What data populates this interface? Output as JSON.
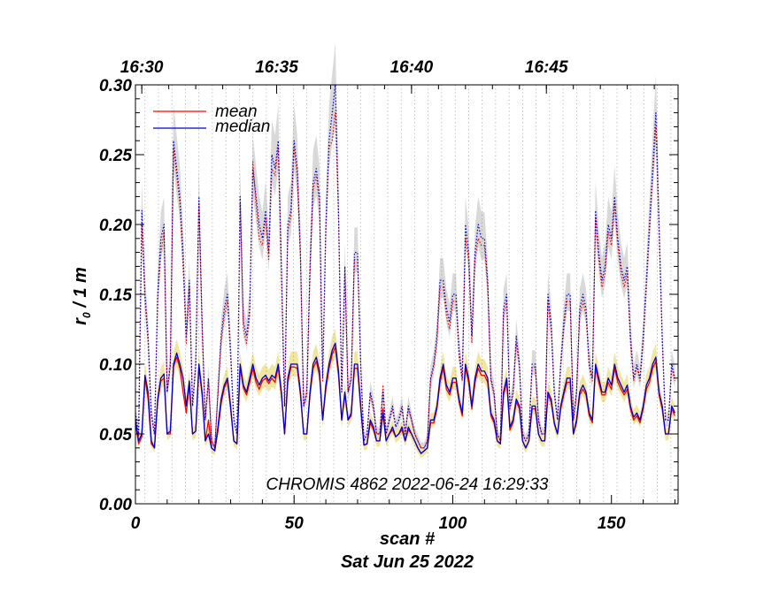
{
  "chart_data": {
    "type": "line",
    "xlabel": "scan #",
    "date_label": "Sat Jun 25 2022",
    "ylabel_main": "r",
    "ylabel_sub": "0",
    "ylabel_rest": " / 1 m",
    "annotation": "CHROMIS 4862 2022-06-24 16:29:33",
    "xlim": [
      0,
      171
    ],
    "ylim": [
      0,
      0.3
    ],
    "x_ticks": [
      0,
      50,
      100,
      150
    ],
    "x_tick_labels": [
      "0",
      "50",
      "100",
      "150"
    ],
    "y_ticks": [
      0,
      0.05,
      0.1,
      0.15,
      0.2,
      0.25,
      0.3
    ],
    "y_tick_labels": [
      "0.00",
      "0.05",
      "0.10",
      "0.15",
      "0.20",
      "0.25",
      "0.30"
    ],
    "time_ticks": [
      {
        "scan": 2,
        "label": "16:30"
      },
      {
        "scan": 44.5,
        "label": "16:35"
      },
      {
        "scan": 87,
        "label": "16:40"
      },
      {
        "scan": 129.5,
        "label": "16:45"
      }
    ],
    "legend_position": "top-left",
    "series": [
      {
        "name": "mean",
        "color": "#ff0000"
      },
      {
        "name": "median",
        "color": "#0000cc"
      }
    ],
    "colors": {
      "low_band": "#f0e6a0",
      "high_band": "#d9d9d9",
      "grid": "#888888"
    },
    "x": [
      0,
      1,
      2,
      3,
      4,
      5,
      6,
      7,
      8,
      9,
      10,
      11,
      12,
      13,
      14,
      15,
      16,
      17,
      18,
      19,
      20,
      21,
      22,
      23,
      24,
      25,
      26,
      27,
      28,
      29,
      30,
      31,
      32,
      33,
      34,
      35,
      36,
      37,
      38,
      39,
      40,
      41,
      42,
      43,
      44,
      45,
      46,
      47,
      48,
      49,
      50,
      51,
      52,
      53,
      54,
      55,
      56,
      57,
      58,
      59,
      60,
      61,
      62,
      63,
      64,
      65,
      66,
      67,
      68,
      69,
      70,
      71,
      72,
      73,
      74,
      75,
      76,
      77,
      78,
      79,
      80,
      81,
      82,
      83,
      84,
      85,
      86,
      87,
      88,
      89,
      90,
      91,
      92,
      93,
      94,
      95,
      96,
      97,
      98,
      99,
      100,
      101,
      102,
      103,
      104,
      105,
      106,
      107,
      108,
      109,
      110,
      111,
      112,
      113,
      114,
      115,
      116,
      117,
      118,
      119,
      120,
      121,
      122,
      123,
      124,
      125,
      126,
      127,
      128,
      129,
      130,
      131,
      132,
      133,
      134,
      135,
      136,
      137,
      138,
      139,
      140,
      141,
      142,
      143,
      144,
      145,
      146,
      147,
      148,
      149,
      150,
      151,
      152,
      153,
      154,
      155,
      156,
      157,
      158,
      159,
      160,
      161,
      162,
      163,
      164,
      165,
      166,
      167,
      168,
      169,
      170
    ],
    "median_low": [
      0.06,
      0.045,
      0.05,
      0.092,
      0.08,
      0.045,
      0.04,
      0.075,
      0.09,
      0.093,
      0.05,
      0.052,
      0.1,
      0.108,
      0.1,
      0.09,
      0.07,
      0.088,
      0.05,
      0.052,
      0.1,
      0.08,
      0.045,
      0.05,
      0.04,
      0.038,
      0.055,
      0.075,
      0.085,
      0.09,
      0.07,
      0.045,
      0.043,
      0.1,
      0.085,
      0.08,
      0.09,
      0.1,
      0.09,
      0.085,
      0.09,
      0.092,
      0.088,
      0.092,
      0.09,
      0.1,
      0.08,
      0.05,
      0.09,
      0.1,
      0.1,
      0.1,
      0.08,
      0.05,
      0.05,
      0.08,
      0.1,
      0.105,
      0.095,
      0.06,
      0.085,
      0.1,
      0.11,
      0.115,
      0.095,
      0.06,
      0.08,
      0.06,
      0.065,
      0.1,
      0.1,
      0.07,
      0.042,
      0.043,
      0.06,
      0.055,
      0.045,
      0.045,
      0.065,
      0.045,
      0.05,
      0.055,
      0.048,
      0.05,
      0.055,
      0.045,
      0.055,
      0.05,
      0.045,
      0.04,
      0.036,
      0.038,
      0.04,
      0.06,
      0.06,
      0.07,
      0.09,
      0.1,
      0.085,
      0.08,
      0.09,
      0.09,
      0.075,
      0.065,
      0.1,
      0.09,
      0.07,
      0.09,
      0.1,
      0.095,
      0.095,
      0.09,
      0.065,
      0.06,
      0.045,
      0.043,
      0.08,
      0.09,
      0.055,
      0.06,
      0.075,
      0.07,
      0.045,
      0.04,
      0.045,
      0.07,
      0.07,
      0.05,
      0.045,
      0.045,
      0.08,
      0.075,
      0.058,
      0.05,
      0.07,
      0.08,
      0.09,
      0.09,
      0.05,
      0.06,
      0.08,
      0.085,
      0.08,
      0.065,
      0.06,
      0.1,
      0.09,
      0.08,
      0.08,
      0.09,
      0.085,
      0.1,
      0.09,
      0.085,
      0.08,
      0.085,
      0.07,
      0.062,
      0.065,
      0.06,
      0.07,
      0.085,
      0.09,
      0.1,
      0.105,
      0.08,
      0.07,
      0.05,
      0.05,
      0.07,
      0.065
    ],
    "mean_low": [
      0.058,
      0.043,
      0.048,
      0.09,
      0.075,
      0.043,
      0.04,
      0.073,
      0.088,
      0.09,
      0.05,
      0.05,
      0.098,
      0.105,
      0.097,
      0.08,
      0.065,
      0.085,
      0.05,
      0.052,
      0.098,
      0.078,
      0.045,
      0.06,
      0.04,
      0.038,
      0.052,
      0.072,
      0.083,
      0.088,
      0.068,
      0.045,
      0.043,
      0.098,
      0.083,
      0.078,
      0.087,
      0.097,
      0.087,
      0.082,
      0.088,
      0.09,
      0.086,
      0.09,
      0.087,
      0.098,
      0.078,
      0.05,
      0.087,
      0.098,
      0.098,
      0.097,
      0.078,
      0.05,
      0.05,
      0.078,
      0.097,
      0.102,
      0.092,
      0.06,
      0.082,
      0.097,
      0.107,
      0.112,
      0.092,
      0.06,
      0.078,
      0.06,
      0.063,
      0.097,
      0.097,
      0.068,
      0.042,
      0.043,
      0.058,
      0.053,
      0.045,
      0.045,
      0.068,
      0.045,
      0.05,
      0.053,
      0.048,
      0.05,
      0.053,
      0.045,
      0.053,
      0.05,
      0.045,
      0.04,
      0.036,
      0.038,
      0.04,
      0.058,
      0.058,
      0.068,
      0.087,
      0.097,
      0.082,
      0.078,
      0.087,
      0.087,
      0.073,
      0.063,
      0.097,
      0.087,
      0.068,
      0.087,
      0.097,
      0.092,
      0.092,
      0.087,
      0.063,
      0.058,
      0.045,
      0.043,
      0.078,
      0.087,
      0.053,
      0.058,
      0.073,
      0.068,
      0.045,
      0.04,
      0.045,
      0.068,
      0.068,
      0.05,
      0.045,
      0.045,
      0.078,
      0.073,
      0.057,
      0.05,
      0.068,
      0.078,
      0.087,
      0.087,
      0.05,
      0.058,
      0.078,
      0.082,
      0.078,
      0.063,
      0.058,
      0.097,
      0.087,
      0.078,
      0.078,
      0.087,
      0.082,
      0.097,
      0.087,
      0.082,
      0.078,
      0.082,
      0.068,
      0.06,
      0.063,
      0.058,
      0.068,
      0.082,
      0.087,
      0.097,
      0.102,
      0.078,
      0.068,
      0.05,
      0.05,
      0.068,
      0.063
    ],
    "median_high": [
      0.065,
      0.05,
      0.21,
      0.15,
      0.12,
      0.065,
      0.05,
      0.15,
      0.19,
      0.2,
      0.08,
      0.1,
      0.26,
      0.24,
      0.22,
      0.18,
      0.12,
      0.16,
      0.07,
      0.1,
      0.22,
      0.13,
      0.06,
      0.09,
      0.045,
      0.04,
      0.08,
      0.12,
      0.14,
      0.15,
      0.11,
      0.06,
      0.05,
      0.22,
      0.13,
      0.12,
      0.14,
      0.24,
      0.22,
      0.2,
      0.19,
      0.21,
      0.18,
      0.25,
      0.24,
      0.26,
      0.17,
      0.07,
      0.2,
      0.21,
      0.26,
      0.24,
      0.18,
      0.07,
      0.08,
      0.17,
      0.23,
      0.24,
      0.22,
      0.09,
      0.2,
      0.26,
      0.28,
      0.3,
      0.21,
      0.08,
      0.17,
      0.08,
      0.09,
      0.18,
      0.18,
      0.1,
      0.045,
      0.05,
      0.08,
      0.07,
      0.05,
      0.05,
      0.08,
      0.05,
      0.06,
      0.07,
      0.055,
      0.06,
      0.07,
      0.05,
      0.07,
      0.06,
      0.05,
      0.045,
      0.04,
      0.04,
      0.045,
      0.09,
      0.1,
      0.12,
      0.16,
      0.16,
      0.14,
      0.13,
      0.15,
      0.15,
      0.11,
      0.09,
      0.2,
      0.18,
      0.12,
      0.18,
      0.2,
      0.19,
      0.19,
      0.16,
      0.09,
      0.08,
      0.05,
      0.045,
      0.14,
      0.15,
      0.07,
      0.08,
      0.12,
      0.1,
      0.05,
      0.045,
      0.05,
      0.1,
      0.1,
      0.06,
      0.05,
      0.05,
      0.15,
      0.13,
      0.08,
      0.06,
      0.1,
      0.13,
      0.15,
      0.15,
      0.06,
      0.08,
      0.14,
      0.15,
      0.14,
      0.1,
      0.09,
      0.21,
      0.18,
      0.16,
      0.17,
      0.2,
      0.19,
      0.22,
      0.19,
      0.17,
      0.16,
      0.17,
      0.12,
      0.09,
      0.1,
      0.09,
      0.12,
      0.16,
      0.2,
      0.24,
      0.28,
      0.2,
      0.12,
      0.06,
      0.06,
      0.1,
      0.09
    ],
    "mean_high": [
      0.063,
      0.048,
      0.2,
      0.145,
      0.115,
      0.063,
      0.05,
      0.145,
      0.18,
      0.195,
      0.08,
      0.098,
      0.255,
      0.235,
      0.215,
      0.17,
      0.115,
      0.155,
      0.07,
      0.098,
      0.215,
      0.125,
      0.06,
      0.088,
      0.045,
      0.04,
      0.078,
      0.115,
      0.135,
      0.145,
      0.105,
      0.06,
      0.05,
      0.215,
      0.125,
      0.115,
      0.135,
      0.245,
      0.215,
      0.19,
      0.185,
      0.205,
      0.175,
      0.24,
      0.235,
      0.255,
      0.165,
      0.07,
      0.195,
      0.205,
      0.255,
      0.235,
      0.175,
      0.07,
      0.078,
      0.165,
      0.225,
      0.235,
      0.215,
      0.088,
      0.195,
      0.255,
      0.26,
      0.28,
      0.205,
      0.08,
      0.165,
      0.08,
      0.088,
      0.175,
      0.175,
      0.098,
      0.045,
      0.05,
      0.078,
      0.068,
      0.05,
      0.05,
      0.085,
      0.05,
      0.06,
      0.068,
      0.055,
      0.06,
      0.068,
      0.05,
      0.068,
      0.06,
      0.05,
      0.045,
      0.04,
      0.04,
      0.045,
      0.088,
      0.098,
      0.115,
      0.155,
      0.155,
      0.135,
      0.125,
      0.145,
      0.145,
      0.105,
      0.088,
      0.19,
      0.175,
      0.115,
      0.175,
      0.19,
      0.185,
      0.185,
      0.155,
      0.088,
      0.078,
      0.05,
      0.045,
      0.135,
      0.145,
      0.068,
      0.078,
      0.115,
      0.098,
      0.05,
      0.045,
      0.05,
      0.098,
      0.098,
      0.06,
      0.05,
      0.05,
      0.145,
      0.125,
      0.078,
      0.06,
      0.098,
      0.125,
      0.145,
      0.145,
      0.06,
      0.078,
      0.135,
      0.145,
      0.135,
      0.098,
      0.088,
      0.205,
      0.175,
      0.155,
      0.165,
      0.195,
      0.185,
      0.215,
      0.185,
      0.165,
      0.155,
      0.165,
      0.115,
      0.088,
      0.098,
      0.088,
      0.115,
      0.155,
      0.195,
      0.235,
      0.27,
      0.195,
      0.115,
      0.06,
      0.06,
      0.098,
      0.088
    ]
  }
}
